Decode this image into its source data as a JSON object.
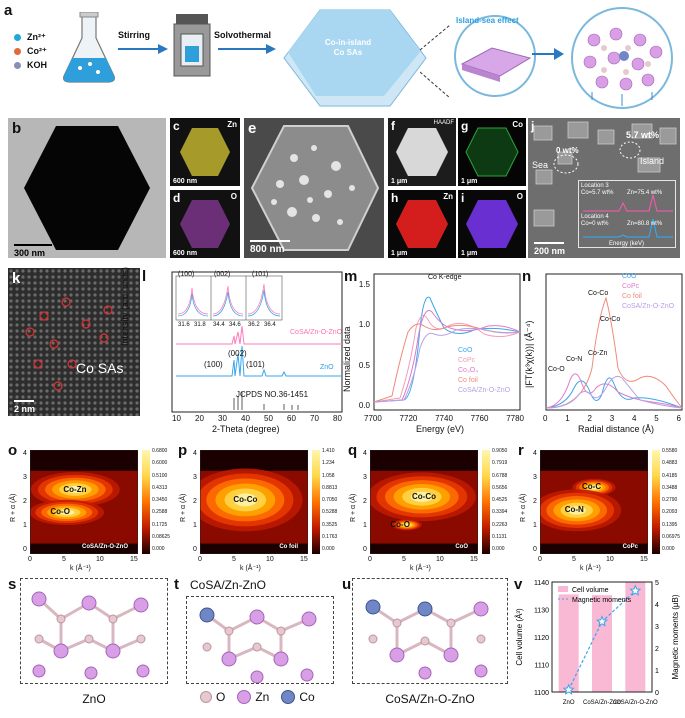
{
  "panel_a": {
    "label": "a",
    "legend": [
      "Zn²⁺",
      "Co²⁺",
      "KOH"
    ],
    "legend_colors": [
      "#1fa8d8",
      "#e06a3a",
      "#8a8fb8"
    ],
    "step1": "Stirring",
    "step2": "Solvothermal",
    "hex_text": [
      "Co-in-island",
      "Co SAs"
    ],
    "effect": "Island-sea effect"
  },
  "panel_b": {
    "label": "b",
    "scale": "300 nm"
  },
  "panel_c": {
    "label": "c",
    "element": "Zn",
    "scale": "600 nm"
  },
  "panel_d": {
    "label": "d",
    "element": "O",
    "scale": "600 nm"
  },
  "panel_e": {
    "label": "e",
    "scale": "800 nm"
  },
  "panel_f": {
    "label": "f",
    "element": "HAADF",
    "scale": "1 μm"
  },
  "panel_g": {
    "label": "g",
    "element": "Co",
    "scale": "1 μm"
  },
  "panel_h": {
    "label": "h",
    "element": "Zn",
    "scale": "1 μm"
  },
  "panel_i": {
    "label": "i",
    "element": "O",
    "scale": "1 μm"
  },
  "panel_j": {
    "label": "j",
    "sea": "Sea",
    "sea_wt": "0 wt%",
    "island": "Island",
    "island_wt": "5.7 wt%",
    "loc3": "Location 3",
    "loc3_co": "Co=5.7 wt%",
    "loc3_zn": "Zn=75.4 wt%",
    "loc4": "Location 4",
    "loc4_co": "Co=0 wt%",
    "loc4_zn": "Zn=80.8 wt%",
    "inset_x": "Energy (keV)",
    "inset_y": "Intensity",
    "scale": "200 nm"
  },
  "panel_k": {
    "label": "k",
    "annot": "Co SAs",
    "scale": "2 nm"
  },
  "panel_l": {
    "label": "l",
    "ylabel": "Intensity (arb. units)",
    "xlabel": "2-Theta (degree)",
    "peaks_label": [
      "(100)",
      "(002)",
      "(101)"
    ],
    "curve_labels": [
      "CoSA/Zn-O-ZnO",
      "ZnO"
    ],
    "ref": "JCPDS NO.36-1451",
    "inset_ticks": [
      "31.6",
      "31.8",
      "34.4",
      "34.6",
      "36.2",
      "36.4"
    ],
    "inset_ylabel": "Intensity (arb. units)",
    "xticks": [
      "10",
      "20",
      "30",
      "40",
      "50",
      "60",
      "70",
      "80"
    ]
  },
  "panel_m": {
    "label": "m",
    "title": "Co K-edge",
    "ylabel": "Normalized data",
    "xlabel": "Energy (eV)",
    "xticks": [
      "7700",
      "7720",
      "7740",
      "7760",
      "7780"
    ],
    "yticks": [
      "0.0",
      "0.5",
      "1.0",
      "1.5"
    ],
    "legend": [
      "CoO",
      "CoPc",
      "Co₃O₄",
      "Co foil",
      "CoSA/Zn-O-ZnO"
    ]
  },
  "panel_n": {
    "label": "n",
    "ylabel": "|FT(k³χ(k))| (Å⁻⁴)",
    "xlabel": "Radial distance (Å)",
    "xticks": [
      "0",
      "1",
      "2",
      "3",
      "4",
      "5",
      "6"
    ],
    "annots": [
      "Co-Co",
      "Co-Co",
      "Co-Zn",
      "Co-N",
      "Co-O"
    ],
    "legend": [
      "CoO",
      "CoPc",
      "Co foil",
      "CoSA/Zn-O-ZnO"
    ]
  },
  "panel_o": {
    "label": "o",
    "annots": [
      "Co-Zn",
      "Co-O"
    ],
    "name": "CoSA/Zn-O-ZnO",
    "ticks": [
      "0.6800",
      "0.6000",
      "0.5100",
      "0.4313",
      "0.3450",
      "0.2588",
      "0.1725",
      "0.08625",
      "0.000"
    ]
  },
  "panel_p": {
    "label": "p",
    "annots": [
      "Co-Co"
    ],
    "name": "Co foil",
    "ticks": [
      "1.410",
      "1.234",
      "1.058",
      "0.8813",
      "0.7050",
      "0.5288",
      "0.3525",
      "0.1763",
      "0.000"
    ]
  },
  "panel_q": {
    "label": "q",
    "annots": [
      "Co-Co",
      "Co-O"
    ],
    "name": "CoO",
    "ticks": [
      "0.9050",
      "0.7919",
      "0.6788",
      "0.5656",
      "0.4525",
      "0.3394",
      "0.2263",
      "0.1131",
      "0.000"
    ]
  },
  "panel_r": {
    "label": "r",
    "annots": [
      "Co-C",
      "Co-N"
    ],
    "name": "CoPc",
    "ticks": [
      "0.5580",
      "0.4883",
      "0.4185",
      "0.3488",
      "0.2790",
      "0.2093",
      "0.1395",
      "0.06975",
      "0.000"
    ]
  },
  "wavelet_axes": {
    "y": "R + α (Å)",
    "x": "k (Å⁻¹)",
    "xticks": [
      "0",
      "5",
      "10",
      "15"
    ],
    "yticks": [
      "0",
      "1",
      "2",
      "3",
      "4"
    ]
  },
  "panel_s": {
    "label": "s",
    "caption": "ZnO"
  },
  "panel_t": {
    "label": "t",
    "title": "CoSA/Zn-ZnO"
  },
  "panel_u": {
    "label": "u",
    "caption": "CoSA/Zn-O-ZnO"
  },
  "atom_legend": [
    "O",
    "Zn",
    "Co"
  ],
  "atom_colors": {
    "O": "#e8c8cf",
    "Zn": "#d99fe6",
    "Co": "#6f87c7"
  },
  "panel_v": {
    "label": "v",
    "ylabel": "Cell volume (Å³)",
    "y2label": "Magnetic moments (μB)",
    "legend": [
      "Cell volume",
      "Magnetic moments"
    ],
    "yticks": [
      "1100",
      "1110",
      "1120",
      "1130",
      "1140"
    ],
    "y2ticks": [
      "0",
      "1",
      "2",
      "3",
      "4",
      "5"
    ]
  },
  "chart_data": [
    {
      "type": "bar",
      "title": "",
      "categories": [
        "ZnO",
        "CoSA/Zn-ZnO",
        "CoSA/Zn-O-ZnO"
      ],
      "series": [
        {
          "name": "Cell volume",
          "values": [
            1135.5,
            1135.2,
            1140.0
          ]
        },
        {
          "name": "Magnetic moments",
          "values": [
            0.1,
            3.2,
            4.6
          ]
        }
      ],
      "ylabel": "Cell volume (Å³)",
      "y2label": "Magnetic moments (μB)",
      "ylim": [
        1100,
        1140
      ],
      "y2lim": [
        0,
        5
      ]
    }
  ]
}
